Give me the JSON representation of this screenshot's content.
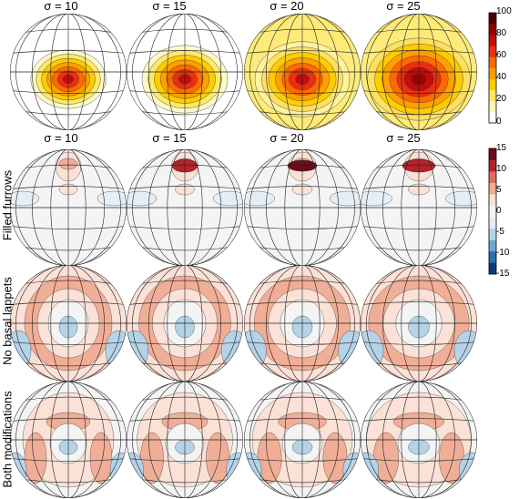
{
  "column_titles": [
    "σ = 10",
    "σ = 15",
    "σ = 20",
    "σ = 25"
  ],
  "row_labels": [
    "",
    "Filled furrows",
    "No basal lappets",
    "Both modifications"
  ],
  "colorbar_top": {
    "ticks": [
      "100",
      "80",
      "60",
      "40",
      "20",
      "0"
    ],
    "colors": [
      "#ffffff",
      "#fff6b0",
      "#ffe560",
      "#ffcc00",
      "#ffa000",
      "#ff6a00",
      "#e83010",
      "#c40c0c",
      "#8e0000",
      "#4a0000"
    ]
  },
  "colorbar_diff": {
    "ticks": [
      "15",
      "10",
      "5",
      "0",
      "-5",
      "-10",
      "-15"
    ],
    "colors": [
      "#0a3a72",
      "#2c6fad",
      "#6ea6d1",
      "#b5d3e8",
      "#e4eef6",
      "#f4f4f4",
      "#fbe1d6",
      "#f1ae97",
      "#de6e5a",
      "#b2232c",
      "#6d0b1c"
    ]
  },
  "panels": {
    "row0": [
      {
        "spread": 0.42,
        "colors": [
          "#fff9c8",
          "#ffe96a",
          "#ffcc00",
          "#ffa000",
          "#ff6a00",
          "#e83010",
          "#c40c0c"
        ]
      },
      {
        "spread": 0.55,
        "colors": [
          "#fff9c8",
          "#ffe96a",
          "#ffcc00",
          "#ffa000",
          "#ff6a00",
          "#e83010",
          "#c40c0c"
        ]
      },
      {
        "spread": 0.66,
        "colors": [
          "#fff3a0",
          "#ffe060",
          "#ffcc00",
          "#ffa000",
          "#ff6a00",
          "#e83010",
          "#c40c0c"
        ]
      },
      {
        "spread": 0.76,
        "colors": [
          "#ffe060",
          "#ffcc00",
          "#ffa000",
          "#ff6a00",
          "#e83010",
          "#c40c0c",
          "#a00000"
        ]
      }
    ]
  }
}
